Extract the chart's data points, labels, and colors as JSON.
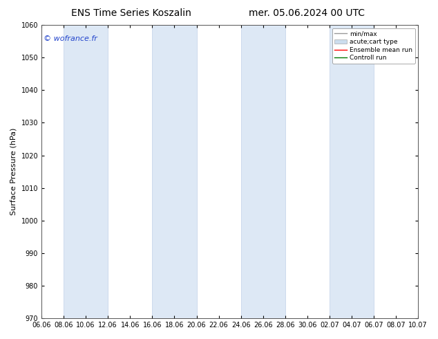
{
  "title_left": "ENS Time Series Koszalin",
  "title_right": "mer. 05.06.2024 00 UTC",
  "ylabel": "Surface Pressure (hPa)",
  "ylim": [
    970,
    1060
  ],
  "yticks": [
    970,
    980,
    990,
    1000,
    1010,
    1020,
    1030,
    1040,
    1050,
    1060
  ],
  "xtick_labels": [
    "06.06",
    "08.06",
    "10.06",
    "12.06",
    "14.06",
    "16.06",
    "18.06",
    "20.06",
    "22.06",
    "24.06",
    "26.06",
    "28.06",
    "30.06",
    "02.07",
    "04.07",
    "06.07",
    "08.07",
    "10.07"
  ],
  "watermark": "© wofrance.fr",
  "watermark_color": "#2244cc",
  "band_color": "#dde8f5",
  "band_indices": [
    1,
    2,
    5,
    6,
    9,
    10,
    13,
    14,
    17
  ],
  "legend_labels": [
    "min/max",
    "acute;cart type",
    "Ensemble mean run",
    "Controll run"
  ],
  "background_color": "#ffffff",
  "fig_width": 6.34,
  "fig_height": 4.9,
  "title_fontsize": 10,
  "label_fontsize": 8,
  "tick_fontsize": 7,
  "watermark_fontsize": 8
}
